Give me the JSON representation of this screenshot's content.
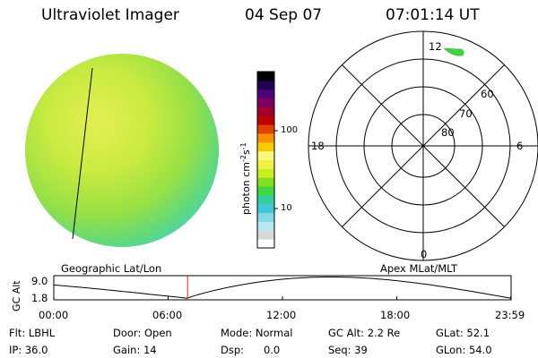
{
  "header": {
    "title": "Ultraviolet Imager",
    "date": "04 Sep 07",
    "time": "07:01:14 UT"
  },
  "colorbar": {
    "label": "photon cm",
    "label_sup1": "-2",
    "label_mid": "s",
    "label_sup2": "-1",
    "ticks": [
      "100",
      "10"
    ],
    "colors": [
      "#ffffff",
      "#d8d8d8",
      "#b8e8f0",
      "#80d8e8",
      "#40c8d8",
      "#30d0a0",
      "#40d840",
      "#80e020",
      "#c8f020",
      "#f0f040",
      "#f8f880",
      "#f8c800",
      "#f89000",
      "#e04000",
      "#c00000",
      "#a00030",
      "#800060",
      "#50007a",
      "#200050",
      "#000000"
    ]
  },
  "polar": {
    "mlt_labels": {
      "top": "12",
      "left": "18",
      "right": "6",
      "bottom": "0"
    },
    "lat_labels": [
      "60",
      "70",
      "80"
    ]
  },
  "timeline": {
    "ylabel": "GC Alt",
    "y_ticks": [
      "9.0",
      "1.8"
    ],
    "left_caption": "Geographic Lat/Lon",
    "right_caption": "Apex MLat/MLT",
    "x_ticks": [
      "00:00",
      "06:00",
      "12:00",
      "18:00",
      "23:59"
    ],
    "current_time_hours": 7.02
  },
  "info": {
    "row1": [
      "Flt: LBHL",
      "Door: Open",
      "Mode: Normal",
      "GC Alt: 2.2 Re",
      "GLat: 52.1"
    ],
    "row2": [
      "IP: 36.0",
      "Gain: 14",
      "Dsp:      0.0",
      "Seq: 39",
      "GLon: 54.0"
    ]
  }
}
